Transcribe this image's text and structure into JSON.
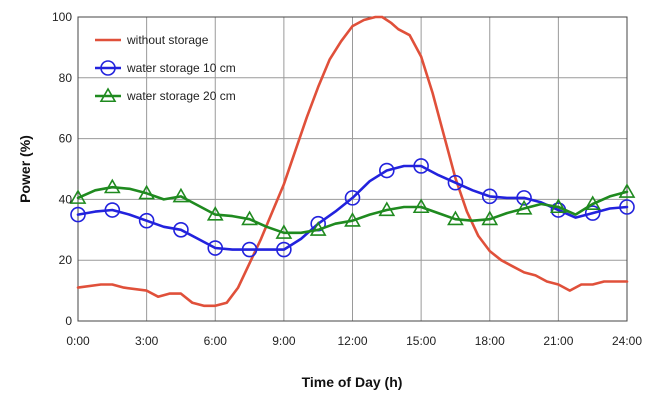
{
  "chart_data": {
    "type": "line",
    "title": "",
    "xlabel": "Time of Day (h)",
    "ylabel": "Power (%)",
    "xlim": [
      0,
      24
    ],
    "ylim": [
      0,
      100
    ],
    "grid": true,
    "legend_position": "top-left",
    "x_ticks": [
      "0:00",
      "3:00",
      "6:00",
      "9:00",
      "12:00",
      "15:00",
      "18:00",
      "21:00",
      "24:00"
    ],
    "y_ticks": [
      "0",
      "20",
      "40",
      "60",
      "80",
      "100"
    ],
    "series": [
      {
        "name": "without storage",
        "color": "#e0503a",
        "marker": "none",
        "x": [
          0,
          1,
          1.5,
          2,
          3,
          3.5,
          4,
          4.5,
          5,
          5.5,
          6,
          6.5,
          7,
          7.5,
          8,
          8.5,
          9,
          9.5,
          10,
          10.5,
          11,
          11.5,
          12,
          12.5,
          13,
          13.3,
          13.7,
          14,
          14.5,
          15,
          15.5,
          16,
          16.5,
          17,
          17.5,
          18,
          18.5,
          19,
          19.5,
          20,
          20.5,
          21,
          21.5,
          22,
          22.5,
          23,
          23.5,
          24
        ],
        "y": [
          11,
          12,
          12,
          11,
          10,
          8,
          9,
          9,
          6,
          5,
          5,
          6,
          11,
          19,
          27,
          36,
          45,
          56,
          67,
          77,
          86,
          92,
          97,
          99,
          100,
          100,
          98,
          96,
          94,
          87,
          75,
          61,
          47,
          36,
          28,
          23,
          20,
          18,
          16,
          15,
          13,
          12,
          10,
          12,
          12,
          13,
          13,
          13
        ]
      },
      {
        "name": "water storage 10 cm",
        "color": "#2222dd",
        "marker": "circle",
        "x": [
          0,
          0.75,
          1.5,
          2.25,
          3,
          3.75,
          4.5,
          5.25,
          6,
          6.75,
          7.5,
          8.25,
          9,
          9.75,
          10.5,
          11.25,
          12,
          12.75,
          13.5,
          14.25,
          15,
          15.75,
          16.5,
          17.25,
          18,
          18.75,
          19.5,
          20.25,
          21,
          21.75,
          22.5,
          23.25,
          24
        ],
        "y": [
          35,
          36,
          36.5,
          35,
          33,
          31,
          30,
          27,
          24,
          23.5,
          23.5,
          23.5,
          23.5,
          27,
          32,
          36,
          40.5,
          46,
          49.5,
          51,
          51,
          48,
          45.5,
          43,
          41,
          40.5,
          40.5,
          39,
          36.5,
          34,
          35.5,
          37,
          37.5
        ],
        "marker_x": [
          0,
          1.5,
          3,
          4.5,
          6,
          7.5,
          9,
          10.5,
          12,
          13.5,
          15,
          16.5,
          18,
          19.5,
          21,
          22.5,
          24
        ]
      },
      {
        "name": "water storage 20 cm",
        "color": "#1f8a1f",
        "marker": "triangle",
        "x": [
          0,
          0.75,
          1.5,
          2.25,
          3,
          3.75,
          4.5,
          5.25,
          6,
          6.75,
          7.5,
          8.25,
          9,
          9.75,
          10.5,
          11.25,
          12,
          12.75,
          13.5,
          14.25,
          15,
          15.75,
          16.5,
          17.25,
          18,
          18.75,
          19.5,
          20.25,
          21,
          21.75,
          22.5,
          23.25,
          24
        ],
        "y": [
          40.5,
          43,
          44,
          43.5,
          42,
          40,
          41,
          38,
          35,
          34.5,
          33.5,
          31,
          29,
          29,
          30,
          32,
          33,
          35,
          36.5,
          37.5,
          37.5,
          35.5,
          33.5,
          33,
          33.5,
          35.5,
          37,
          38.5,
          37.5,
          35,
          38.5,
          41,
          42.5
        ],
        "marker_x": [
          0,
          1.5,
          3,
          4.5,
          6,
          7.5,
          9,
          10.5,
          12,
          13.5,
          15,
          16.5,
          18,
          19.5,
          21,
          22.5,
          24
        ]
      }
    ]
  }
}
